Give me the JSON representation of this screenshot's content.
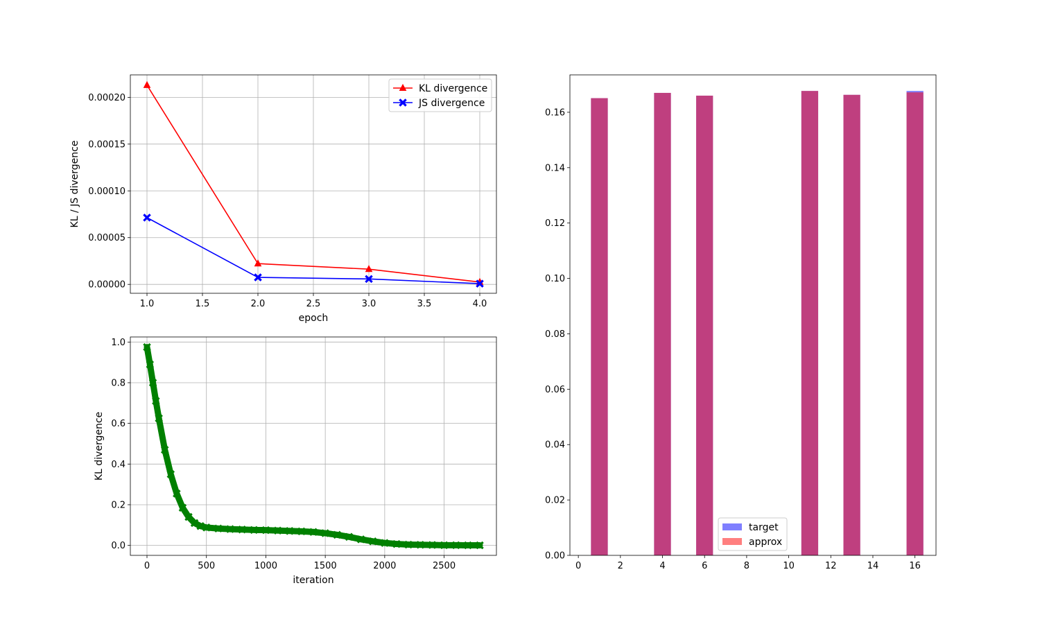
{
  "chart_data": [
    {
      "type": "line",
      "xlabel": "epoch",
      "ylabel": "KL / JS divergence",
      "xlim": [
        0.85,
        4.15
      ],
      "ylim": [
        -9.5e-06,
        0.000224
      ],
      "grid": true,
      "legend_position": "upper right",
      "x_ticks": [
        1.0,
        1.5,
        2.0,
        2.5,
        3.0,
        3.5,
        4.0
      ],
      "x_tick_labels": [
        "1.0",
        "1.5",
        "2.0",
        "2.5",
        "3.0",
        "3.5",
        "4.0"
      ],
      "y_ticks": [
        0,
        5e-05,
        0.0001,
        0.00015,
        0.0002
      ],
      "y_tick_labels": [
        "0.00000",
        "0.00005",
        "0.00010",
        "0.00015",
        "0.00020"
      ],
      "x": [
        1,
        2,
        3,
        4
      ],
      "series": [
        {
          "name": "KL divergence",
          "color": "#ff0000",
          "marker": "triangle",
          "values": [
            0.000213,
            2.22e-05,
            1.63e-05,
            2.5e-06
          ]
        },
        {
          "name": "JS divergence",
          "color": "#0000ff",
          "marker": "x",
          "values": [
            7.14e-05,
            7.5e-06,
            5.8e-06,
            8e-07
          ]
        }
      ]
    },
    {
      "type": "line",
      "xlabel": "iteration",
      "ylabel": "KL divergence",
      "xlim": [
        -140,
        2940
      ],
      "ylim": [
        -0.049,
        1.025
      ],
      "grid": true,
      "x_ticks": [
        0,
        500,
        1000,
        1500,
        2000,
        2500
      ],
      "x_tick_labels": [
        "0",
        "500",
        "1000",
        "1500",
        "2000",
        "2500"
      ],
      "y_ticks": [
        0,
        0.2,
        0.4,
        0.6,
        0.8,
        1.0
      ],
      "y_tick_labels": [
        "0.0",
        "0.2",
        "0.4",
        "0.6",
        "0.8",
        "1.0"
      ],
      "series": [
        {
          "color": "#008000",
          "marker": "x",
          "points": [
            [
              0,
              0.975
            ],
            [
              25,
              0.89
            ],
            [
              50,
              0.8
            ],
            [
              75,
              0.71
            ],
            [
              100,
              0.625
            ],
            [
              150,
              0.47
            ],
            [
              200,
              0.35
            ],
            [
              250,
              0.255
            ],
            [
              300,
              0.185
            ],
            [
              350,
              0.14
            ],
            [
              400,
              0.11
            ],
            [
              450,
              0.095
            ],
            [
              500,
              0.088
            ],
            [
              600,
              0.083
            ],
            [
              700,
              0.08
            ],
            [
              800,
              0.078
            ],
            [
              900,
              0.076
            ],
            [
              1000,
              0.075
            ],
            [
              1100,
              0.073
            ],
            [
              1200,
              0.071
            ],
            [
              1300,
              0.069
            ],
            [
              1400,
              0.066
            ],
            [
              1500,
              0.06
            ],
            [
              1600,
              0.052
            ],
            [
              1700,
              0.042
            ],
            [
              1800,
              0.03
            ],
            [
              1900,
              0.02
            ],
            [
              2000,
              0.012
            ],
            [
              2100,
              0.007
            ],
            [
              2200,
              0.004
            ],
            [
              2300,
              0.003
            ],
            [
              2400,
              0.002
            ],
            [
              2500,
              0.001
            ],
            [
              2600,
              0.0008
            ],
            [
              2700,
              0.0005
            ],
            [
              2800,
              0.0004
            ]
          ]
        }
      ]
    },
    {
      "type": "bar",
      "xlim": [
        -0.4,
        17.0
      ],
      "ylim": [
        0,
        0.1735
      ],
      "x_ticks": [
        0,
        2,
        4,
        6,
        8,
        10,
        12,
        14,
        16
      ],
      "x_tick_labels": [
        "0",
        "2",
        "4",
        "6",
        "8",
        "10",
        "12",
        "14",
        "16"
      ],
      "y_ticks": [
        0,
        0.02,
        0.04,
        0.06,
        0.08,
        0.1,
        0.12,
        0.14,
        0.16
      ],
      "y_tick_labels": [
        "0.00",
        "0.02",
        "0.04",
        "0.06",
        "0.08",
        "0.10",
        "0.12",
        "0.14",
        "0.16"
      ],
      "legend_position": "lower center",
      "categories": [
        1,
        4,
        6,
        11,
        13,
        16
      ],
      "bar_width": 0.8,
      "series": [
        {
          "name": "target",
          "color": "#0000ff",
          "alpha": 0.5,
          "values": [
            0.1651,
            0.167,
            0.166,
            0.1677,
            0.1663,
            0.1677
          ]
        },
        {
          "name": "approx",
          "color": "#ff0000",
          "alpha": 0.5,
          "values": [
            0.1651,
            0.167,
            0.166,
            0.1677,
            0.1663,
            0.1672
          ]
        }
      ]
    }
  ]
}
